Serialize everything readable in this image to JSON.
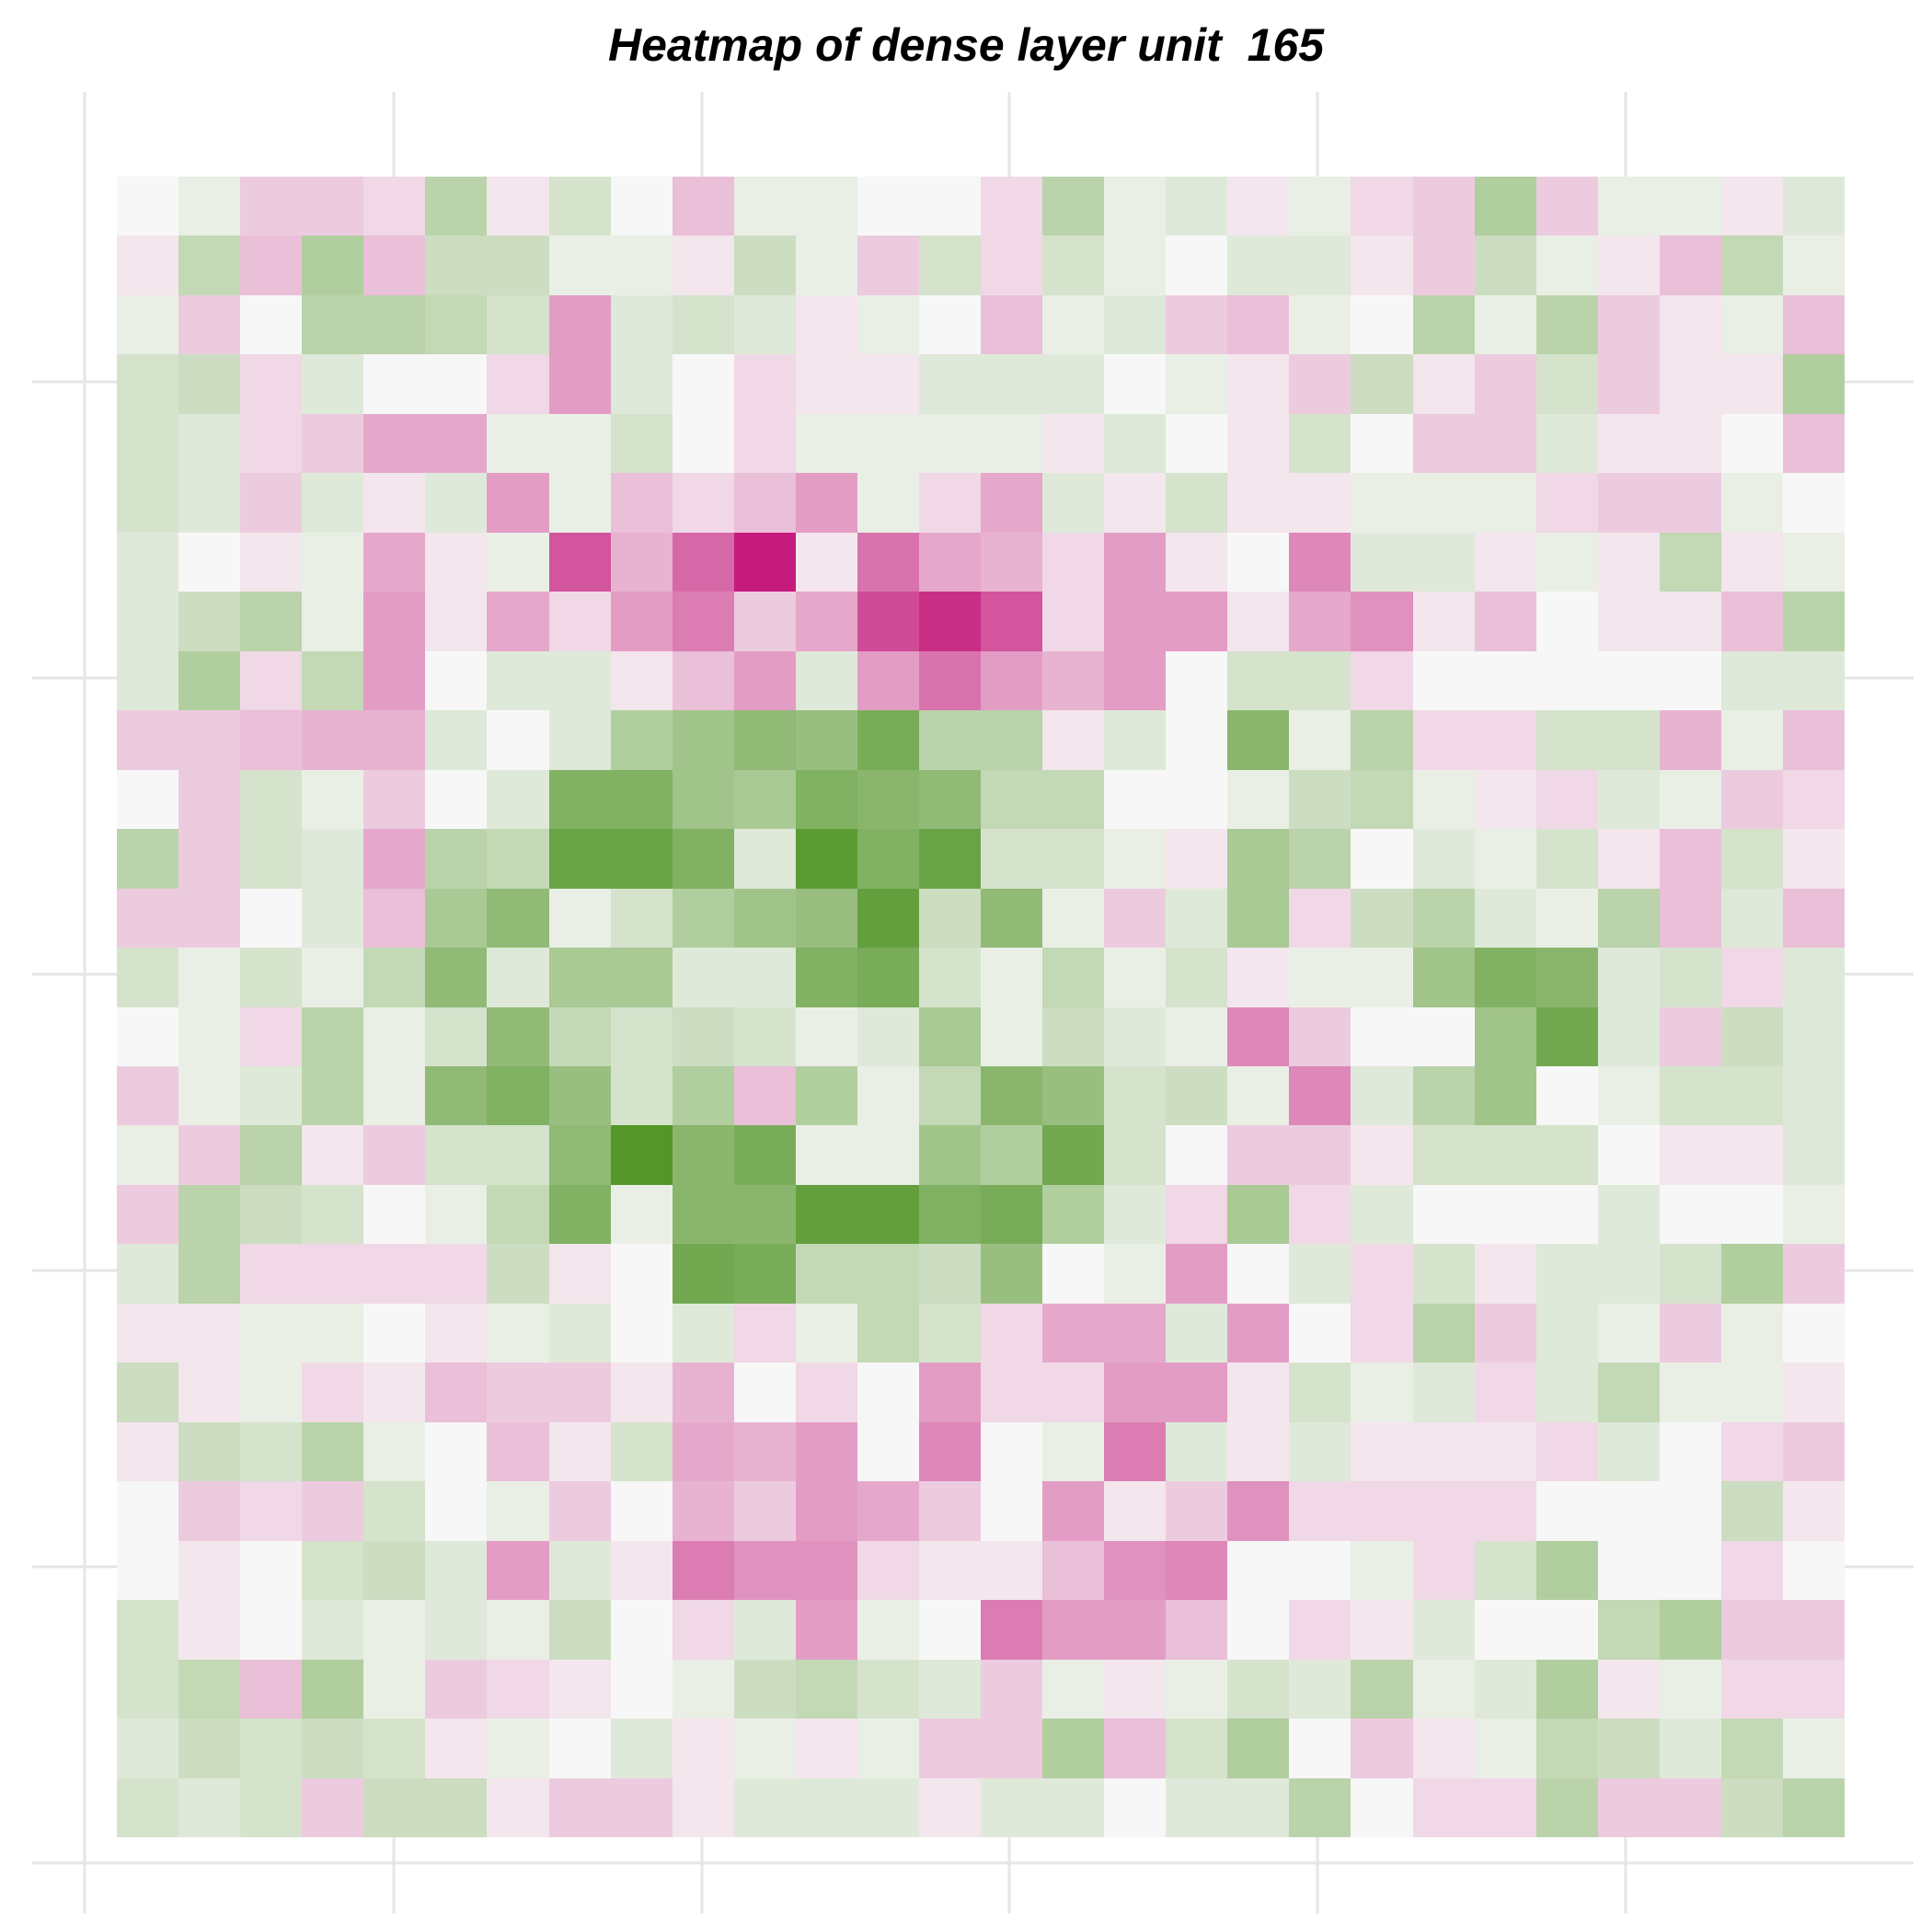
{
  "chart_data": {
    "type": "heatmap",
    "title": "Heatmap of dense layer unit  165",
    "xlabel": "",
    "ylabel": "",
    "grid": true,
    "legend": "none",
    "rows": 28,
    "cols": 28,
    "value_range": [
      -1,
      1
    ],
    "color_scale": {
      "negative": "#4d9221",
      "mid": "#f7f7f7",
      "positive": "#c51b7d"
    },
    "values": [
      [
        0,
        -0.05,
        0.15,
        0.15,
        0.1,
        -0.3,
        0.05,
        -0.15,
        0,
        0.2,
        -0.05,
        -0.05,
        0,
        0,
        0.1,
        -0.3,
        -0.05,
        -0.1,
        0.05,
        -0.05,
        0.1,
        0.15,
        -0.35,
        0.15,
        -0.05,
        -0.05,
        0.05,
        -0.1
      ],
      [
        0.05,
        -0.25,
        0.2,
        -0.35,
        0.2,
        -0.2,
        -0.2,
        -0.05,
        -0.05,
        0.05,
        -0.2,
        -0.05,
        0.15,
        -0.15,
        0.1,
        -0.15,
        -0.05,
        0,
        -0.1,
        -0.1,
        0.05,
        0.15,
        -0.2,
        -0.05,
        0.05,
        0.2,
        -0.25,
        -0.05
      ],
      [
        -0.05,
        0.15,
        0,
        -0.3,
        -0.3,
        -0.25,
        -0.15,
        0.35,
        -0.1,
        -0.15,
        -0.1,
        0.05,
        -0.05,
        0,
        0.2,
        -0.05,
        -0.1,
        0.15,
        0.2,
        -0.05,
        0,
        -0.3,
        -0.05,
        -0.3,
        0.15,
        0.05,
        -0.05,
        0.2
      ],
      [
        -0.15,
        -0.2,
        0.1,
        -0.1,
        0,
        0,
        0.1,
        0.35,
        -0.1,
        0,
        0.1,
        0.05,
        0.05,
        -0.1,
        -0.1,
        -0.1,
        0,
        -0.05,
        0.05,
        0.15,
        -0.2,
        0.05,
        0.15,
        -0.15,
        0.15,
        0.05,
        0.05,
        -0.35
      ],
      [
        -0.15,
        -0.1,
        0.1,
        0.15,
        0.3,
        0.3,
        -0.05,
        -0.05,
        -0.15,
        0,
        0.1,
        -0.05,
        -0.05,
        -0.05,
        -0.05,
        0.05,
        -0.1,
        0,
        0.05,
        -0.15,
        0,
        0.15,
        0.15,
        -0.1,
        0.05,
        0.05,
        0,
        0.2
      ],
      [
        -0.15,
        -0.1,
        0.15,
        -0.1,
        0.05,
        -0.1,
        0.35,
        -0.05,
        0.2,
        0.1,
        0.2,
        0.35,
        -0.05,
        0.1,
        0.3,
        -0.1,
        0.05,
        -0.15,
        0.05,
        0.05,
        -0.05,
        -0.05,
        -0.05,
        0.1,
        0.15,
        0.15,
        -0.05,
        0
      ],
      [
        -0.1,
        0,
        0.05,
        -0.05,
        0.3,
        0.05,
        -0.05,
        0.7,
        0.25,
        0.6,
        1.0,
        0.05,
        0.55,
        0.3,
        0.25,
        0.1,
        0.35,
        0.05,
        0,
        0.45,
        -0.1,
        -0.1,
        0.05,
        -0.05,
        0.05,
        -0.25,
        0.05,
        -0.05
      ],
      [
        -0.1,
        -0.2,
        -0.3,
        -0.05,
        0.35,
        0.05,
        0.3,
        0.1,
        0.35,
        0.5,
        0.15,
        0.3,
        0.75,
        0.9,
        0.7,
        0.1,
        0.35,
        0.35,
        0.05,
        0.3,
        0.4,
        0.05,
        0.2,
        0,
        0.05,
        0.05,
        0.2,
        -0.3
      ],
      [
        -0.1,
        -0.35,
        0.1,
        -0.25,
        0.35,
        0,
        -0.1,
        -0.1,
        0.05,
        0.2,
        0.35,
        -0.1,
        0.35,
        0.55,
        0.35,
        0.25,
        0.35,
        0,
        -0.15,
        -0.15,
        0.1,
        0,
        0,
        0,
        0,
        0,
        -0.1,
        -0.1
      ],
      [
        0.15,
        0.15,
        0.2,
        0.25,
        0.25,
        -0.1,
        0,
        -0.1,
        -0.35,
        -0.45,
        -0.55,
        -0.5,
        -0.7,
        -0.3,
        -0.3,
        0.05,
        -0.1,
        0,
        -0.6,
        -0.05,
        -0.3,
        0.1,
        0.1,
        -0.15,
        -0.15,
        0.25,
        -0.05,
        0.2
      ],
      [
        0,
        0.15,
        -0.15,
        -0.05,
        0.15,
        0,
        -0.1,
        -0.65,
        -0.65,
        -0.45,
        -0.4,
        -0.65,
        -0.6,
        -0.55,
        -0.25,
        -0.25,
        0,
        0,
        -0.05,
        -0.2,
        -0.25,
        -0.05,
        0.05,
        0.1,
        -0.1,
        -0.05,
        0.15,
        0.1
      ],
      [
        -0.3,
        0.15,
        -0.15,
        -0.1,
        0.3,
        -0.3,
        -0.25,
        -0.8,
        -0.8,
        -0.65,
        -0.1,
        -0.9,
        -0.65,
        -0.8,
        -0.15,
        -0.15,
        -0.05,
        0.05,
        -0.4,
        -0.3,
        0,
        -0.1,
        -0.05,
        -0.15,
        0.05,
        0.2,
        -0.15,
        0.05
      ],
      [
        0.15,
        0.15,
        0,
        -0.1,
        0.2,
        -0.4,
        -0.55,
        -0.05,
        -0.15,
        -0.35,
        -0.45,
        -0.5,
        -0.85,
        -0.2,
        -0.55,
        -0.05,
        0.15,
        -0.1,
        -0.4,
        0.1,
        -0.2,
        -0.3,
        -0.1,
        -0.05,
        -0.3,
        0.2,
        -0.1,
        0.2
      ],
      [
        -0.15,
        -0.05,
        -0.15,
        -0.05,
        -0.25,
        -0.55,
        -0.1,
        -0.4,
        -0.4,
        -0.1,
        -0.1,
        -0.65,
        -0.7,
        -0.15,
        -0.05,
        -0.25,
        -0.05,
        -0.15,
        0.05,
        -0.05,
        -0.05,
        -0.45,
        -0.65,
        -0.6,
        -0.1,
        -0.15,
        0.1,
        -0.1
      ],
      [
        0,
        -0.05,
        0.1,
        -0.3,
        -0.05,
        -0.15,
        -0.55,
        -0.25,
        -0.15,
        -0.2,
        -0.15,
        -0.05,
        -0.1,
        -0.4,
        -0.05,
        -0.2,
        -0.1,
        -0.05,
        0.45,
        0.15,
        0,
        0,
        -0.45,
        -0.75,
        -0.1,
        0.15,
        -0.2,
        -0.1
      ],
      [
        0.15,
        -0.05,
        -0.1,
        -0.3,
        -0.05,
        -0.55,
        -0.65,
        -0.5,
        -0.15,
        -0.35,
        0.2,
        -0.35,
        -0.05,
        -0.25,
        -0.6,
        -0.5,
        -0.15,
        -0.2,
        -0.05,
        0.45,
        -0.1,
        -0.3,
        -0.45,
        0,
        -0.05,
        -0.15,
        -0.15,
        -0.1
      ],
      [
        -0.05,
        0.15,
        -0.3,
        0.05,
        0.15,
        -0.15,
        -0.15,
        -0.55,
        -0.95,
        -0.6,
        -0.7,
        -0.05,
        -0.05,
        -0.45,
        -0.35,
        -0.75,
        -0.15,
        0,
        0.15,
        0.15,
        0.05,
        -0.15,
        -0.15,
        -0.15,
        0,
        0.05,
        0.05,
        -0.1
      ],
      [
        0.15,
        -0.3,
        -0.2,
        -0.15,
        0,
        -0.05,
        -0.25,
        -0.65,
        -0.05,
        -0.6,
        -0.6,
        -0.85,
        -0.85,
        -0.65,
        -0.7,
        -0.35,
        -0.1,
        0.1,
        -0.4,
        0.1,
        -0.1,
        0,
        0,
        0,
        -0.1,
        0,
        0,
        -0.05
      ],
      [
        -0.1,
        -0.3,
        0.1,
        0.1,
        0.1,
        0.1,
        -0.2,
        0.05,
        0,
        -0.75,
        -0.7,
        -0.25,
        -0.25,
        -0.2,
        -0.5,
        0,
        -0.05,
        0.35,
        0,
        -0.1,
        0.1,
        -0.15,
        0.05,
        -0.1,
        -0.1,
        -0.15,
        -0.35,
        0.15
      ],
      [
        0.05,
        0.05,
        -0.05,
        -0.05,
        0,
        0.05,
        -0.05,
        -0.1,
        0,
        -0.1,
        0.1,
        -0.05,
        -0.25,
        -0.15,
        0.1,
        0.3,
        0.3,
        -0.1,
        0.35,
        0,
        0.1,
        -0.3,
        0.15,
        -0.1,
        -0.05,
        0.15,
        -0.05,
        0
      ],
      [
        -0.2,
        0.05,
        -0.05,
        0.1,
        0.05,
        0.2,
        0.15,
        0.15,
        0.05,
        0.25,
        0,
        0.1,
        0,
        0.35,
        0.1,
        0.1,
        0.35,
        0.35,
        0.05,
        -0.15,
        -0.05,
        -0.1,
        0.1,
        -0.1,
        -0.25,
        -0.05,
        -0.05,
        0.05
      ],
      [
        0.05,
        -0.2,
        -0.15,
        -0.3,
        -0.05,
        0,
        0.2,
        0.05,
        -0.15,
        0.3,
        0.25,
        0.35,
        0,
        0.45,
        0,
        -0.05,
        0.5,
        -0.1,
        0.05,
        -0.1,
        0.05,
        0.05,
        0.05,
        0.1,
        -0.1,
        0,
        0.1,
        0.15
      ],
      [
        0,
        0.15,
        0.1,
        0.15,
        -0.15,
        0,
        -0.05,
        0.15,
        0,
        0.25,
        0.15,
        0.35,
        0.3,
        0.15,
        0,
        0.35,
        0.05,
        0.15,
        0.4,
        0.1,
        0.1,
        0.1,
        0.1,
        0,
        0,
        0,
        -0.2,
        0.05
      ],
      [
        0,
        0.05,
        0,
        -0.15,
        -0.2,
        -0.1,
        0.35,
        -0.1,
        0.05,
        0.5,
        0.4,
        0.4,
        0.1,
        0.05,
        0.05,
        0.2,
        0.4,
        0.45,
        0,
        0,
        -0.05,
        0.1,
        -0.15,
        -0.35,
        0,
        0,
        0.1,
        0
      ],
      [
        -0.15,
        0.05,
        0,
        -0.1,
        -0.05,
        -0.1,
        -0.05,
        -0.2,
        0,
        0.1,
        -0.1,
        0.35,
        -0.05,
        0,
        0.5,
        0.35,
        0.35,
        0.2,
        0,
        0.1,
        0.05,
        -0.1,
        0,
        0,
        -0.25,
        -0.35,
        0.15,
        0.15
      ],
      [
        -0.15,
        -0.25,
        0.2,
        -0.35,
        -0.05,
        0.15,
        0.1,
        0.05,
        0,
        -0.05,
        -0.2,
        -0.25,
        -0.15,
        -0.1,
        0.15,
        -0.05,
        0.05,
        -0.05,
        -0.15,
        -0.1,
        -0.3,
        -0.05,
        -0.1,
        -0.35,
        0.05,
        -0.05,
        0.1,
        0.1
      ],
      [
        -0.1,
        -0.2,
        -0.15,
        -0.2,
        -0.15,
        0.05,
        -0.05,
        0,
        -0.1,
        0.05,
        -0.05,
        0.05,
        -0.05,
        0.15,
        0.15,
        -0.35,
        0.2,
        -0.15,
        -0.35,
        0,
        0.15,
        0.05,
        -0.05,
        -0.25,
        -0.2,
        -0.1,
        -0.25,
        -0.05
      ],
      [
        -0.15,
        -0.1,
        -0.15,
        0.15,
        -0.2,
        -0.2,
        0.05,
        0.15,
        0.15,
        0.05,
        -0.1,
        -0.1,
        -0.1,
        0.05,
        -0.1,
        -0.1,
        0,
        -0.1,
        -0.1,
        -0.3,
        0,
        0.1,
        0.1,
        -0.3,
        0.15,
        0.15,
        -0.2,
        -0.3
      ]
    ]
  }
}
